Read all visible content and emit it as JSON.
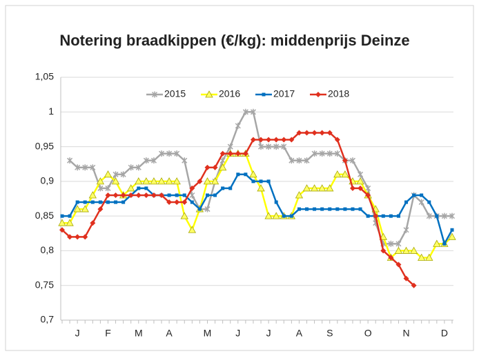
{
  "chart_data": {
    "type": "line",
    "title": "Notering braadkippen (€/kg): middenprijs Deinze",
    "categories": [
      null,
      null,
      "J",
      null,
      null,
      null,
      "F",
      null,
      null,
      null,
      "M",
      null,
      null,
      null,
      "A",
      null,
      null,
      null,
      null,
      "M",
      null,
      null,
      null,
      "J",
      null,
      null,
      null,
      "J",
      null,
      null,
      null,
      "A",
      null,
      null,
      null,
      "S",
      null,
      null,
      null,
      null,
      "O",
      null,
      null,
      null,
      null,
      "N",
      null,
      null,
      null,
      null,
      "D",
      null
    ],
    "series": [
      {
        "name": "2015",
        "color": "#a6a6a6",
        "values": [
          null,
          0.93,
          0.92,
          0.92,
          0.92,
          0.89,
          0.89,
          0.91,
          0.91,
          0.92,
          0.92,
          0.93,
          0.93,
          0.94,
          0.94,
          0.94,
          0.93,
          0.88,
          0.86,
          0.86,
          0.9,
          0.93,
          0.95,
          0.98,
          1.0,
          1.0,
          0.95,
          0.95,
          0.95,
          0.95,
          0.93,
          0.93,
          0.93,
          0.94,
          0.94,
          0.94,
          0.94,
          0.93,
          0.93,
          0.91,
          0.89,
          0.84,
          0.81,
          0.81,
          0.81,
          0.83,
          0.88,
          0.87,
          0.85,
          0.85,
          0.85,
          0.85
        ]
      },
      {
        "name": "2016",
        "color": "#ffff00",
        "values": [
          0.84,
          0.84,
          0.86,
          0.86,
          0.88,
          0.9,
          0.91,
          0.9,
          0.88,
          0.89,
          0.9,
          0.9,
          0.9,
          0.9,
          0.9,
          0.9,
          0.85,
          0.83,
          0.86,
          0.9,
          0.9,
          0.92,
          0.94,
          0.94,
          0.94,
          0.91,
          0.89,
          0.85,
          0.85,
          0.85,
          0.85,
          0.88,
          0.89,
          0.89,
          0.89,
          0.89,
          0.91,
          0.91,
          0.9,
          0.9,
          0.88,
          0.86,
          0.82,
          0.79,
          0.8,
          0.8,
          0.8,
          0.79,
          0.79,
          0.81,
          0.81,
          0.82
        ]
      },
      {
        "name": "2017",
        "color": "#0070c0",
        "values": [
          0.85,
          0.85,
          0.87,
          0.87,
          0.87,
          0.87,
          0.87,
          0.87,
          0.87,
          0.88,
          0.89,
          0.89,
          0.88,
          0.88,
          0.88,
          0.88,
          0.88,
          0.87,
          0.86,
          0.88,
          0.88,
          0.89,
          0.89,
          0.91,
          0.91,
          0.9,
          0.9,
          0.9,
          0.87,
          0.85,
          0.85,
          0.86,
          0.86,
          0.86,
          0.86,
          0.86,
          0.86,
          0.86,
          0.86,
          0.86,
          0.85,
          0.85,
          0.85,
          0.85,
          0.85,
          0.87,
          0.88,
          0.88,
          0.87,
          0.85,
          0.81,
          0.83
        ]
      },
      {
        "name": "2018",
        "color": "#e0301e",
        "values": [
          0.83,
          0.82,
          0.82,
          0.82,
          0.84,
          0.86,
          0.88,
          0.88,
          0.88,
          0.88,
          0.88,
          0.88,
          0.88,
          0.88,
          0.87,
          0.87,
          0.87,
          0.89,
          0.9,
          0.92,
          0.92,
          0.94,
          0.94,
          0.94,
          0.94,
          0.96,
          0.96,
          0.96,
          0.96,
          0.96,
          0.96,
          0.97,
          0.97,
          0.97,
          0.97,
          0.97,
          0.96,
          0.93,
          0.89,
          0.89,
          0.88,
          0.85,
          0.8,
          0.79,
          0.78,
          0.76,
          0.75,
          null,
          null,
          null,
          null,
          null
        ]
      }
    ],
    "ylim": [
      0.7,
      1.05
    ],
    "yticks": [
      {
        "value": 0.7,
        "label": "0,7"
      },
      {
        "value": 0.75,
        "label": "0,75"
      },
      {
        "value": 0.8,
        "label": "0,8"
      },
      {
        "value": 0.85,
        "label": "0,85"
      },
      {
        "value": 0.9,
        "label": "0,9"
      },
      {
        "value": 0.95,
        "label": "0,95"
      },
      1,
      {
        "value": 1.05,
        "label": "1,05"
      }
    ],
    "grid": true,
    "legend": "top"
  }
}
